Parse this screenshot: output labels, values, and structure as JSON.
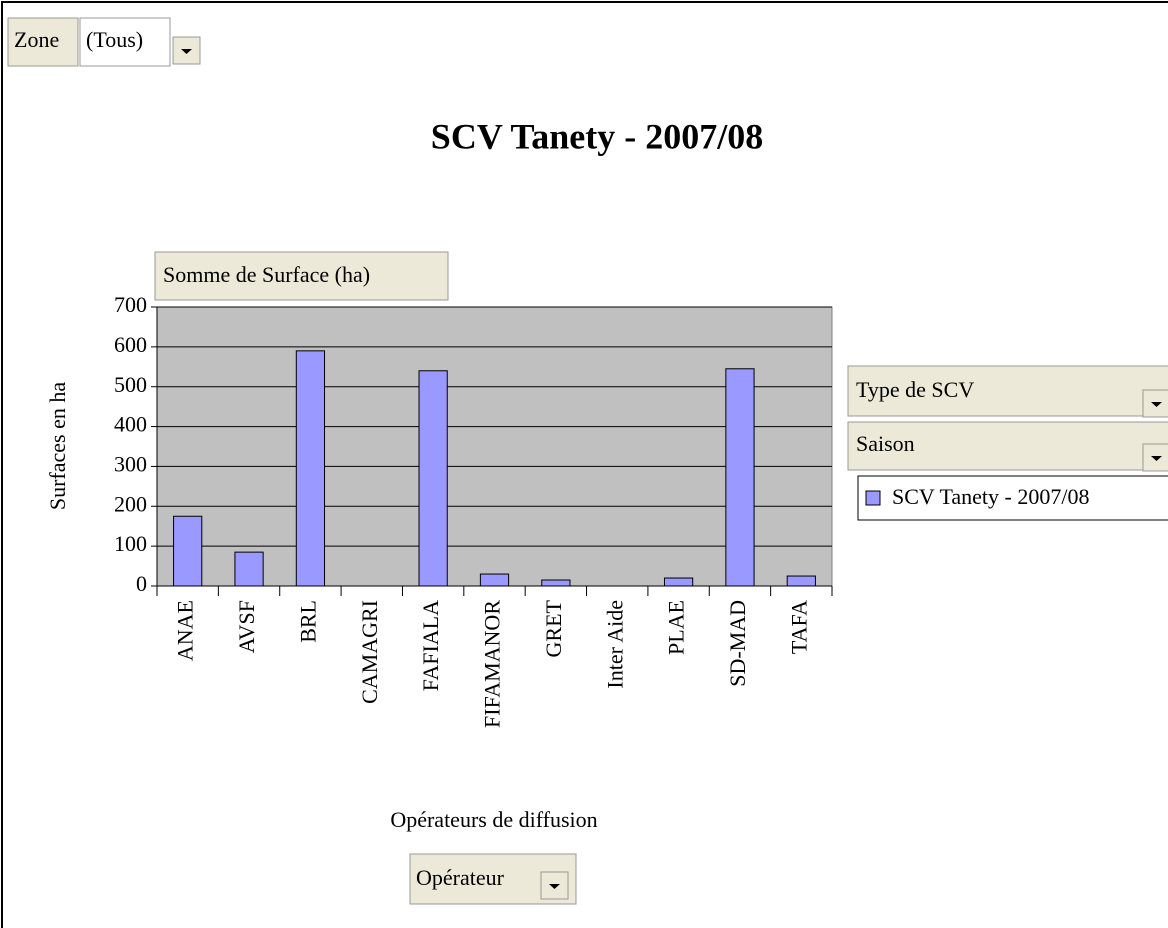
{
  "chart_data": {
    "type": "bar",
    "title": "SCV Tanety -  2007/08",
    "y_label": "Surfaces en ha",
    "x_label": "Opérateurs de diffusion",
    "categories": [
      "ANAE",
      "AVSF",
      "BRL",
      "CAMAGRI",
      "FAFIALA",
      "FIFAMANOR",
      "GRET",
      "Inter Aide",
      "PLAE",
      "SD-MAD",
      "TAFA"
    ],
    "series": [
      {
        "name": "SCV Tanety -  2007/08",
        "color": "#9999ff",
        "values": [
          175,
          85,
          590,
          0,
          540,
          30,
          15,
          0,
          20,
          545,
          25
        ]
      }
    ],
    "ylim": [
      0,
      700
    ],
    "yticks": [
      0,
      100,
      200,
      300,
      400,
      500,
      600,
      700
    ],
    "grid": true
  },
  "pivot": {
    "page_field": "Zone",
    "page_value": "(Tous)",
    "data_field": "Somme de Surface (ha)",
    "series_fields": [
      "Type de SCV",
      "Saison"
    ],
    "category_field": "Opérateur"
  }
}
